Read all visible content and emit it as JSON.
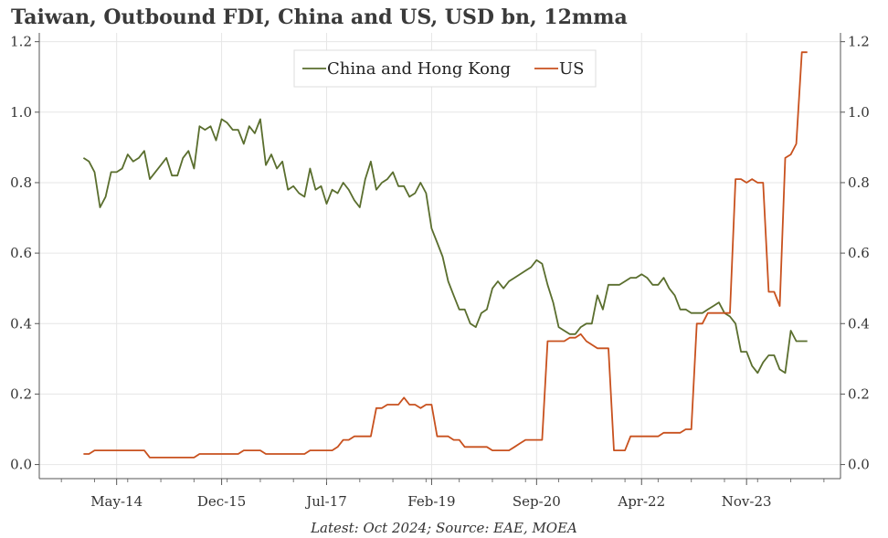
{
  "chart_data": {
    "type": "line",
    "title": "Taiwan, Outbound FDI, China and US, USD bn, 12mma",
    "source": "Latest: Oct 2024; Source: EAE, MOEA",
    "xlabel": "",
    "ylabel": "",
    "ylim": [
      -0.04,
      1.225
    ],
    "yticks": [
      0.0,
      0.2,
      0.4,
      0.6,
      0.8,
      1.0,
      1.2
    ],
    "ytick_labels": [
      "0.0",
      "0.2",
      "0.4",
      "0.6",
      "0.8",
      "1.0",
      "1.2"
    ],
    "xlim": [
      "2013-03",
      "2025-04"
    ],
    "xtick_labels": [
      {
        "date": "2014-05",
        "label": "May-14"
      },
      {
        "date": "2015-12",
        "label": "Dec-15"
      },
      {
        "date": "2017-07",
        "label": "Jul-17"
      },
      {
        "date": "2019-02",
        "label": "Feb-19"
      },
      {
        "date": "2020-09",
        "label": "Sep-20"
      },
      {
        "date": "2022-04",
        "label": "Apr-22"
      },
      {
        "date": "2023-11",
        "label": "Nov-23"
      }
    ],
    "grid": true,
    "legend_position": "top-center",
    "series": [
      {
        "name": "China and Hong Kong",
        "color": "#5a6e2e",
        "points": [
          [
            "2013-11",
            0.87
          ],
          [
            "2013-12",
            0.86
          ],
          [
            "2014-01",
            0.83
          ],
          [
            "2014-02",
            0.73
          ],
          [
            "2014-03",
            0.76
          ],
          [
            "2014-04",
            0.83
          ],
          [
            "2014-05",
            0.83
          ],
          [
            "2014-06",
            0.84
          ],
          [
            "2014-07",
            0.88
          ],
          [
            "2014-08",
            0.86
          ],
          [
            "2014-09",
            0.87
          ],
          [
            "2014-10",
            0.89
          ],
          [
            "2014-11",
            0.81
          ],
          [
            "2014-12",
            0.83
          ],
          [
            "2015-01",
            0.85
          ],
          [
            "2015-02",
            0.87
          ],
          [
            "2015-03",
            0.82
          ],
          [
            "2015-04",
            0.82
          ],
          [
            "2015-05",
            0.87
          ],
          [
            "2015-06",
            0.89
          ],
          [
            "2015-07",
            0.84
          ],
          [
            "2015-08",
            0.96
          ],
          [
            "2015-09",
            0.95
          ],
          [
            "2015-10",
            0.96
          ],
          [
            "2015-11",
            0.92
          ],
          [
            "2015-12",
            0.98
          ],
          [
            "2016-01",
            0.97
          ],
          [
            "2016-02",
            0.95
          ],
          [
            "2016-03",
            0.95
          ],
          [
            "2016-04",
            0.91
          ],
          [
            "2016-05",
            0.96
          ],
          [
            "2016-06",
            0.94
          ],
          [
            "2016-07",
            0.98
          ],
          [
            "2016-08",
            0.85
          ],
          [
            "2016-09",
            0.88
          ],
          [
            "2016-10",
            0.84
          ],
          [
            "2016-11",
            0.86
          ],
          [
            "2016-12",
            0.78
          ],
          [
            "2017-01",
            0.79
          ],
          [
            "2017-02",
            0.77
          ],
          [
            "2017-03",
            0.76
          ],
          [
            "2017-04",
            0.84
          ],
          [
            "2017-05",
            0.78
          ],
          [
            "2017-06",
            0.79
          ],
          [
            "2017-07",
            0.74
          ],
          [
            "2017-08",
            0.78
          ],
          [
            "2017-09",
            0.77
          ],
          [
            "2017-10",
            0.8
          ],
          [
            "2017-11",
            0.78
          ],
          [
            "2017-12",
            0.75
          ],
          [
            "2018-01",
            0.73
          ],
          [
            "2018-02",
            0.81
          ],
          [
            "2018-03",
            0.86
          ],
          [
            "2018-04",
            0.78
          ],
          [
            "2018-05",
            0.8
          ],
          [
            "2018-06",
            0.81
          ],
          [
            "2018-07",
            0.83
          ],
          [
            "2018-08",
            0.79
          ],
          [
            "2018-09",
            0.79
          ],
          [
            "2018-10",
            0.76
          ],
          [
            "2018-11",
            0.77
          ],
          [
            "2018-12",
            0.8
          ],
          [
            "2019-01",
            0.77
          ],
          [
            "2019-02",
            0.67
          ],
          [
            "2019-03",
            0.63
          ],
          [
            "2019-04",
            0.59
          ],
          [
            "2019-05",
            0.52
          ],
          [
            "2019-06",
            0.48
          ],
          [
            "2019-07",
            0.44
          ],
          [
            "2019-08",
            0.44
          ],
          [
            "2019-09",
            0.4
          ],
          [
            "2019-10",
            0.39
          ],
          [
            "2019-11",
            0.43
          ],
          [
            "2019-12",
            0.44
          ],
          [
            "2020-01",
            0.5
          ],
          [
            "2020-02",
            0.52
          ],
          [
            "2020-03",
            0.5
          ],
          [
            "2020-04",
            0.52
          ],
          [
            "2020-05",
            0.53
          ],
          [
            "2020-06",
            0.54
          ],
          [
            "2020-07",
            0.55
          ],
          [
            "2020-08",
            0.56
          ],
          [
            "2020-09",
            0.58
          ],
          [
            "2020-10",
            0.57
          ],
          [
            "2020-11",
            0.51
          ],
          [
            "2020-12",
            0.46
          ],
          [
            "2021-01",
            0.39
          ],
          [
            "2021-02",
            0.38
          ],
          [
            "2021-03",
            0.37
          ],
          [
            "2021-04",
            0.37
          ],
          [
            "2021-05",
            0.39
          ],
          [
            "2021-06",
            0.4
          ],
          [
            "2021-07",
            0.4
          ],
          [
            "2021-08",
            0.48
          ],
          [
            "2021-09",
            0.44
          ],
          [
            "2021-10",
            0.51
          ],
          [
            "2021-11",
            0.51
          ],
          [
            "2021-12",
            0.51
          ],
          [
            "2022-01",
            0.52
          ],
          [
            "2022-02",
            0.53
          ],
          [
            "2022-03",
            0.53
          ],
          [
            "2022-04",
            0.54
          ],
          [
            "2022-05",
            0.53
          ],
          [
            "2022-06",
            0.51
          ],
          [
            "2022-07",
            0.51
          ],
          [
            "2022-08",
            0.53
          ],
          [
            "2022-09",
            0.5
          ],
          [
            "2022-10",
            0.48
          ],
          [
            "2022-11",
            0.44
          ],
          [
            "2022-12",
            0.44
          ],
          [
            "2023-01",
            0.43
          ],
          [
            "2023-02",
            0.43
          ],
          [
            "2023-03",
            0.43
          ],
          [
            "2023-04",
            0.44
          ],
          [
            "2023-05",
            0.45
          ],
          [
            "2023-06",
            0.46
          ],
          [
            "2023-07",
            0.43
          ],
          [
            "2023-08",
            0.42
          ],
          [
            "2023-09",
            0.4
          ],
          [
            "2023-10",
            0.32
          ],
          [
            "2023-11",
            0.32
          ],
          [
            "2023-12",
            0.28
          ],
          [
            "2024-01",
            0.26
          ],
          [
            "2024-02",
            0.29
          ],
          [
            "2024-03",
            0.31
          ],
          [
            "2024-04",
            0.31
          ],
          [
            "2024-05",
            0.27
          ],
          [
            "2024-06",
            0.26
          ],
          [
            "2024-07",
            0.38
          ],
          [
            "2024-08",
            0.35
          ],
          [
            "2024-09",
            0.35
          ],
          [
            "2024-10",
            0.35
          ]
        ]
      },
      {
        "name": "US",
        "color": "#c8511e",
        "points": [
          [
            "2013-11",
            0.03
          ],
          [
            "2013-12",
            0.03
          ],
          [
            "2014-01",
            0.04
          ],
          [
            "2014-02",
            0.04
          ],
          [
            "2014-03",
            0.04
          ],
          [
            "2014-04",
            0.04
          ],
          [
            "2014-05",
            0.04
          ],
          [
            "2014-06",
            0.04
          ],
          [
            "2014-07",
            0.04
          ],
          [
            "2014-08",
            0.04
          ],
          [
            "2014-09",
            0.04
          ],
          [
            "2014-10",
            0.04
          ],
          [
            "2014-11",
            0.02
          ],
          [
            "2014-12",
            0.02
          ],
          [
            "2015-01",
            0.02
          ],
          [
            "2015-02",
            0.02
          ],
          [
            "2015-03",
            0.02
          ],
          [
            "2015-04",
            0.02
          ],
          [
            "2015-05",
            0.02
          ],
          [
            "2015-06",
            0.02
          ],
          [
            "2015-07",
            0.02
          ],
          [
            "2015-08",
            0.03
          ],
          [
            "2015-09",
            0.03
          ],
          [
            "2015-10",
            0.03
          ],
          [
            "2015-11",
            0.03
          ],
          [
            "2015-12",
            0.03
          ],
          [
            "2016-01",
            0.03
          ],
          [
            "2016-02",
            0.03
          ],
          [
            "2016-03",
            0.03
          ],
          [
            "2016-04",
            0.04
          ],
          [
            "2016-05",
            0.04
          ],
          [
            "2016-06",
            0.04
          ],
          [
            "2016-07",
            0.04
          ],
          [
            "2016-08",
            0.03
          ],
          [
            "2016-09",
            0.03
          ],
          [
            "2016-10",
            0.03
          ],
          [
            "2016-11",
            0.03
          ],
          [
            "2016-12",
            0.03
          ],
          [
            "2017-01",
            0.03
          ],
          [
            "2017-02",
            0.03
          ],
          [
            "2017-03",
            0.03
          ],
          [
            "2017-04",
            0.04
          ],
          [
            "2017-05",
            0.04
          ],
          [
            "2017-06",
            0.04
          ],
          [
            "2017-07",
            0.04
          ],
          [
            "2017-08",
            0.04
          ],
          [
            "2017-09",
            0.05
          ],
          [
            "2017-10",
            0.07
          ],
          [
            "2017-11",
            0.07
          ],
          [
            "2017-12",
            0.08
          ],
          [
            "2018-01",
            0.08
          ],
          [
            "2018-02",
            0.08
          ],
          [
            "2018-03",
            0.08
          ],
          [
            "2018-04",
            0.16
          ],
          [
            "2018-05",
            0.16
          ],
          [
            "2018-06",
            0.17
          ],
          [
            "2018-07",
            0.17
          ],
          [
            "2018-08",
            0.17
          ],
          [
            "2018-09",
            0.19
          ],
          [
            "2018-10",
            0.17
          ],
          [
            "2018-11",
            0.17
          ],
          [
            "2018-12",
            0.16
          ],
          [
            "2019-01",
            0.17
          ],
          [
            "2019-02",
            0.17
          ],
          [
            "2019-03",
            0.08
          ],
          [
            "2019-04",
            0.08
          ],
          [
            "2019-05",
            0.08
          ],
          [
            "2019-06",
            0.07
          ],
          [
            "2019-07",
            0.07
          ],
          [
            "2019-08",
            0.05
          ],
          [
            "2019-09",
            0.05
          ],
          [
            "2019-10",
            0.05
          ],
          [
            "2019-11",
            0.05
          ],
          [
            "2019-12",
            0.05
          ],
          [
            "2020-01",
            0.04
          ],
          [
            "2020-02",
            0.04
          ],
          [
            "2020-03",
            0.04
          ],
          [
            "2020-04",
            0.04
          ],
          [
            "2020-05",
            0.05
          ],
          [
            "2020-06",
            0.06
          ],
          [
            "2020-07",
            0.07
          ],
          [
            "2020-08",
            0.07
          ],
          [
            "2020-09",
            0.07
          ],
          [
            "2020-10",
            0.07
          ],
          [
            "2020-11",
            0.35
          ],
          [
            "2020-12",
            0.35
          ],
          [
            "2021-01",
            0.35
          ],
          [
            "2021-02",
            0.35
          ],
          [
            "2021-03",
            0.36
          ],
          [
            "2021-04",
            0.36
          ],
          [
            "2021-05",
            0.37
          ],
          [
            "2021-06",
            0.35
          ],
          [
            "2021-07",
            0.34
          ],
          [
            "2021-08",
            0.33
          ],
          [
            "2021-09",
            0.33
          ],
          [
            "2021-10",
            0.33
          ],
          [
            "2021-11",
            0.04
          ],
          [
            "2021-12",
            0.04
          ],
          [
            "2022-01",
            0.04
          ],
          [
            "2022-02",
            0.08
          ],
          [
            "2022-03",
            0.08
          ],
          [
            "2022-04",
            0.08
          ],
          [
            "2022-05",
            0.08
          ],
          [
            "2022-06",
            0.08
          ],
          [
            "2022-07",
            0.08
          ],
          [
            "2022-08",
            0.09
          ],
          [
            "2022-09",
            0.09
          ],
          [
            "2022-10",
            0.09
          ],
          [
            "2022-11",
            0.09
          ],
          [
            "2022-12",
            0.1
          ],
          [
            "2023-01",
            0.1
          ],
          [
            "2023-02",
            0.4
          ],
          [
            "2023-03",
            0.4
          ],
          [
            "2023-04",
            0.43
          ],
          [
            "2023-05",
            0.43
          ],
          [
            "2023-06",
            0.43
          ],
          [
            "2023-07",
            0.43
          ],
          [
            "2023-08",
            0.43
          ],
          [
            "2023-09",
            0.81
          ],
          [
            "2023-10",
            0.81
          ],
          [
            "2023-11",
            0.8
          ],
          [
            "2023-12",
            0.81
          ],
          [
            "2024-01",
            0.8
          ],
          [
            "2024-02",
            0.8
          ],
          [
            "2024-03",
            0.49
          ],
          [
            "2024-04",
            0.49
          ],
          [
            "2024-05",
            0.45
          ],
          [
            "2024-06",
            0.87
          ],
          [
            "2024-07",
            0.88
          ],
          [
            "2024-08",
            0.91
          ],
          [
            "2024-09",
            1.17
          ],
          [
            "2024-10",
            1.17
          ]
        ]
      }
    ]
  }
}
